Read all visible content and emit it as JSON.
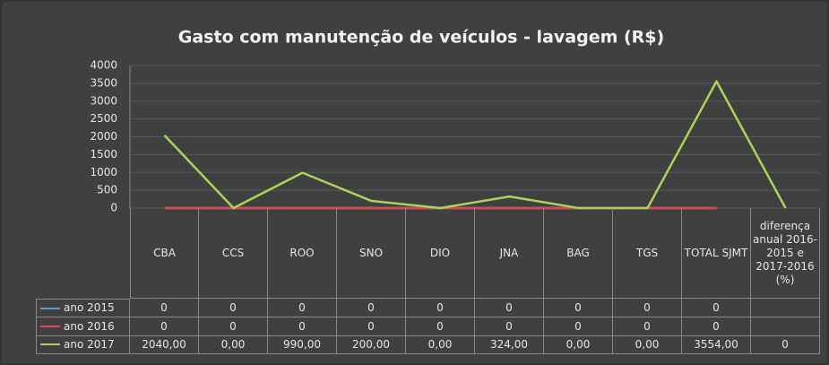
{
  "chart_data": {
    "type": "line",
    "title": "Gasto com manutenção de veículos - lavagem (R$)",
    "categories": [
      "CBA",
      "CCS",
      "ROO",
      "SNO",
      "DIO",
      "JNA",
      "BAG",
      "TGS",
      "TOTAL SJMT",
      "diferença anual 2016-2015 e 2017-2016 (%)"
    ],
    "series": [
      {
        "name": "ano 2015",
        "color": "#5b9bd5",
        "values": [
          0,
          0,
          0,
          0,
          0,
          0,
          0,
          0,
          0,
          null
        ]
      },
      {
        "name": "ano 2016",
        "color": "#e0474c",
        "values": [
          0,
          0,
          0,
          0,
          0,
          0,
          0,
          0,
          0,
          null
        ]
      },
      {
        "name": "ano 2017",
        "color": "#a9d45a",
        "values": [
          2040,
          0,
          990,
          200,
          0,
          324,
          0,
          0,
          3554,
          0
        ],
        "value_labels": [
          "2040,00",
          "0,00",
          "990,00",
          "200,00",
          "0,00",
          "324,00",
          "0,00",
          "0,00",
          "3554,00",
          "0"
        ]
      }
    ],
    "ylim": [
      0,
      4000
    ],
    "yticks": [
      0,
      500,
      1000,
      1500,
      2000,
      2500,
      3000,
      3500,
      4000
    ],
    "grid": true
  }
}
